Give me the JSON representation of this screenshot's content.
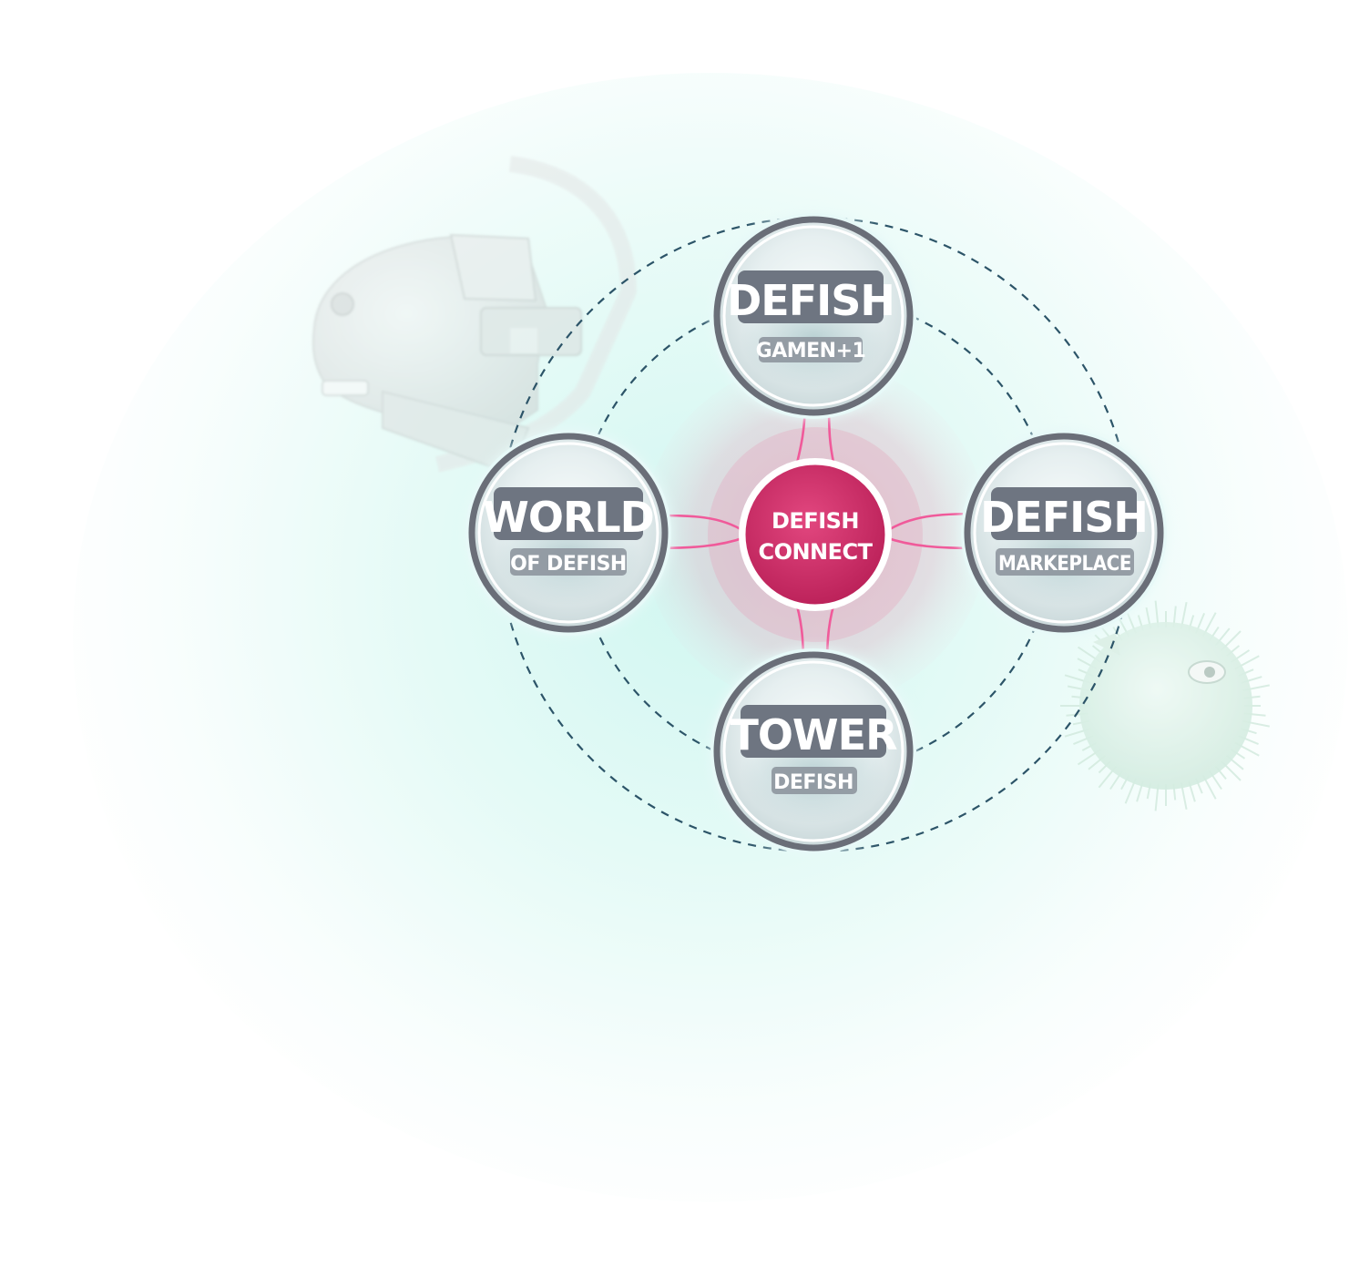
{
  "center": {
    "line1": "DEFISH",
    "line2": "CONNECT"
  },
  "nodes": {
    "top": {
      "title": "DEFISH",
      "subtitle": "GAMEN+1"
    },
    "left": {
      "title": "WORLD",
      "subtitle": "OF DEFISH"
    },
    "right": {
      "title": "DEFISH",
      "subtitle": "MARKEPLACE"
    },
    "bottom": {
      "title": "TOWER",
      "subtitle": "DEFISH"
    }
  },
  "colors": {
    "accent": "#d0306b",
    "arrow": "#f05a9a",
    "node_ring": "#6a6e78",
    "label_bg": "#6e7581",
    "dashed_ring": "#2c5468",
    "background_glow": "#d8f7f2"
  },
  "icons": {
    "decoration_left": "robot-fish-icon",
    "decoration_right": "pufferfish-icon"
  }
}
